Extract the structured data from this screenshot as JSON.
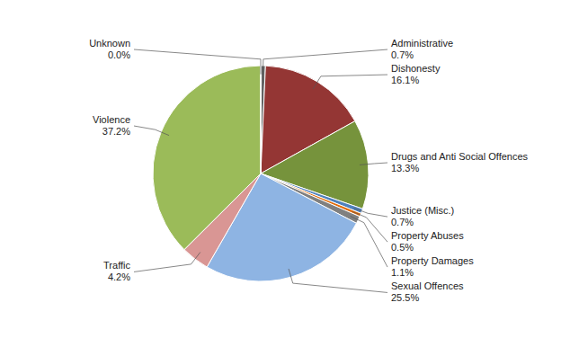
{
  "chart_data": {
    "type": "pie",
    "categories": [
      "Administrative",
      "Dishonesty",
      "Drugs and Anti Social Offences",
      "Justice (Misc.)",
      "Property Abuses",
      "Property Damages",
      "Sexual Offences",
      "Traffic",
      "Violence",
      "Unknown"
    ],
    "values": [
      0.7,
      16.1,
      13.3,
      0.7,
      0.5,
      1.1,
      25.5,
      4.2,
      37.2,
      0.0
    ],
    "value_labels": [
      "0.7%",
      "16.1%",
      "13.3%",
      "0.7%",
      "0.5%",
      "1.1%",
      "25.5%",
      "4.2%",
      "37.2%",
      "0.0%"
    ],
    "colors": [
      "#636363",
      "#943634",
      "#76933c",
      "#4f81bd",
      "#e36c09",
      "#808080",
      "#8eb4e3",
      "#d99694",
      "#9bbb59",
      "#c0c0c0"
    ],
    "data_labels": true
  }
}
